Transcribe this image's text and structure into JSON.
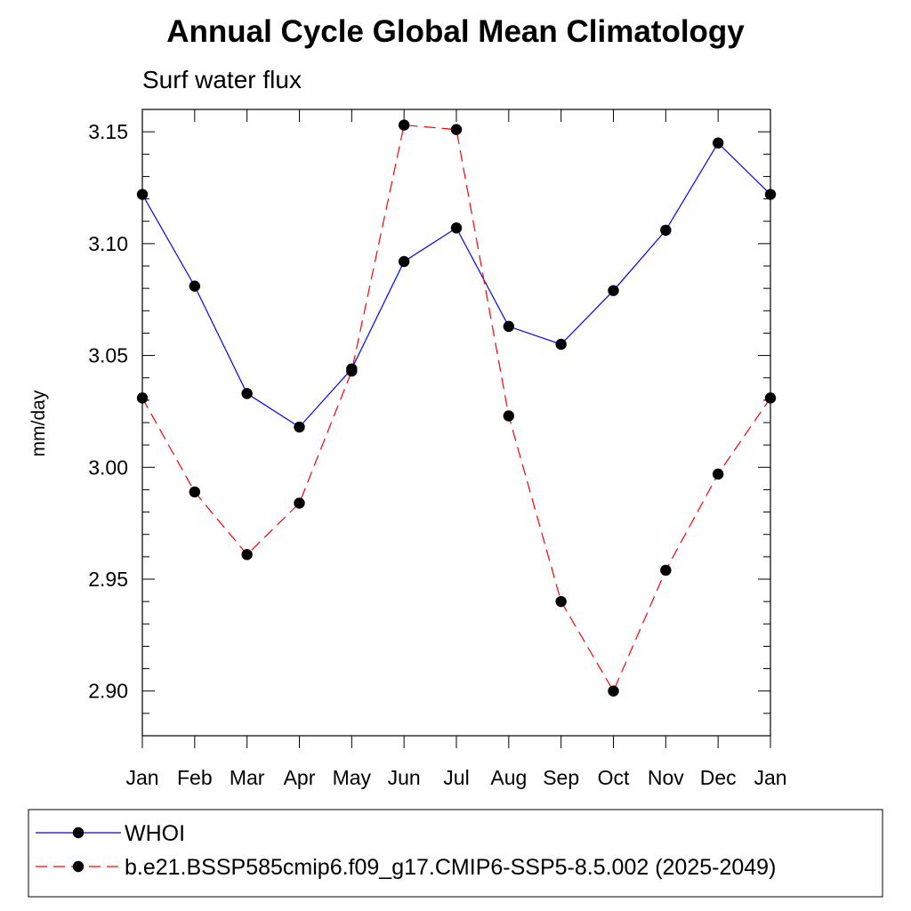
{
  "chart_data": {
    "type": "line",
    "title": "Annual Cycle Global Mean Climatology",
    "subtitle": "Surf water flux",
    "xlabel": "",
    "ylabel": "mm/day",
    "categories": [
      "Jan",
      "Feb",
      "Mar",
      "Apr",
      "May",
      "Jun",
      "Jul",
      "Aug",
      "Sep",
      "Oct",
      "Nov",
      "Dec",
      "Jan"
    ],
    "ylim": [
      2.88,
      3.16
    ],
    "yticks": [
      2.9,
      2.95,
      3.0,
      3.05,
      3.1,
      3.15
    ],
    "ytick_labels": [
      "2.90",
      "2.95",
      "3.00",
      "3.05",
      "3.10",
      "3.15"
    ],
    "legend_placement": "bottom",
    "series": [
      {
        "name": "WHOI",
        "color": "#0000ff",
        "line_style": "solid",
        "marker": "filled-circle",
        "values": [
          3.122,
          3.081,
          3.033,
          3.018,
          3.044,
          3.092,
          3.107,
          3.063,
          3.055,
          3.079,
          3.106,
          3.145,
          3.122
        ]
      },
      {
        "name": "b.e21.BSSP585cmip6.f09_g17.CMIP6-SSP5-8.5.002 (2025-2049)",
        "color": "#ff0000",
        "line_style": "dashed",
        "marker": "filled-circle",
        "values": [
          3.031,
          2.989,
          2.961,
          2.984,
          3.043,
          3.153,
          3.151,
          3.023,
          2.94,
          2.9,
          2.954,
          2.997,
          3.031
        ]
      }
    ]
  }
}
